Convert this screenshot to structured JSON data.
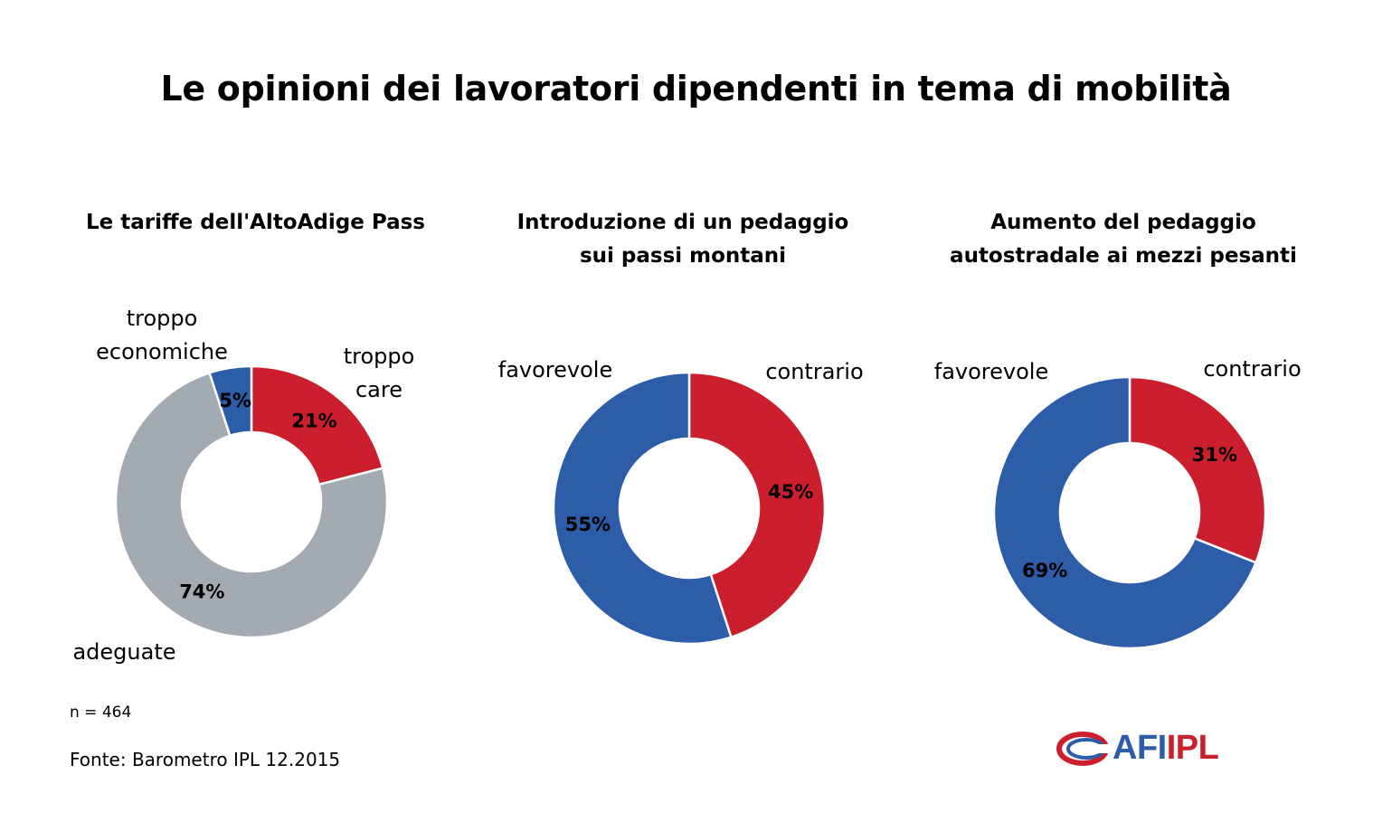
{
  "title": "Le opinioni dei lavoratori dipendenti in tema di mobilità",
  "note": "n = 464",
  "source": "Fonte: Barometro IPL 12.2015",
  "logo": {
    "part1": "AFI",
    "part2": "IPL",
    "color1": "#2d5ca8",
    "color2": "#cc1f2d"
  },
  "colors": {
    "red": "#cc1f2d",
    "blue": "#2d5ca8",
    "gray": "#a4aab2"
  },
  "chart_data": [
    {
      "type": "pie",
      "title": [
        "Le tariffe dell'AltoAdige Pass"
      ],
      "slices": [
        {
          "label": [
            "troppo",
            "care"
          ],
          "value": 21,
          "value_label": "21%",
          "color": "#cc1f2d"
        },
        {
          "label": [
            "adeguate"
          ],
          "value": 74,
          "value_label": "74%",
          "color": "#a4aab2"
        },
        {
          "label": [
            "troppo",
            "economiche"
          ],
          "value": 5,
          "value_label": "5%",
          "color": "#2d5ca8"
        }
      ]
    },
    {
      "type": "pie",
      "title": [
        "Introduzione di un pedaggio",
        "sui passi montani"
      ],
      "slices": [
        {
          "label": [
            "contrario"
          ],
          "value": 45,
          "value_label": "45%",
          "color": "#cc1f2d"
        },
        {
          "label": [
            "favorevole"
          ],
          "value": 55,
          "value_label": "55%",
          "color": "#2d5ca8"
        }
      ]
    },
    {
      "type": "pie",
      "title": [
        "Aumento del pedaggio",
        "autostradale ai mezzi pesanti"
      ],
      "slices": [
        {
          "label": [
            "contrario"
          ],
          "value": 31,
          "value_label": "31%",
          "color": "#cc1f2d"
        },
        {
          "label": [
            "favorevole"
          ],
          "value": 69,
          "value_label": "69%",
          "color": "#2d5ca8"
        }
      ]
    }
  ]
}
